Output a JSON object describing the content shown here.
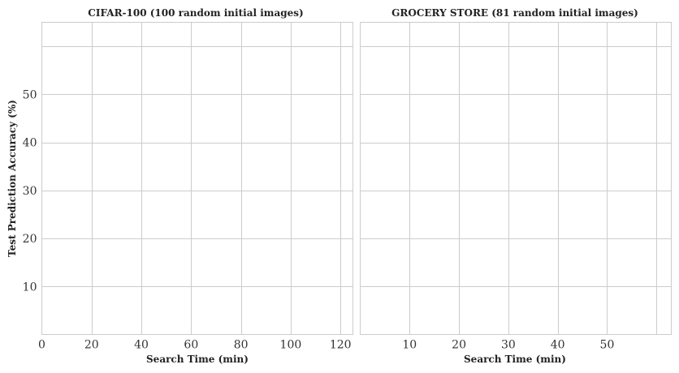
{
  "chart_data": [
    {
      "type": "line",
      "title": "CIFAR-100 (100 random initial images)",
      "xlabel": "Search Time (min)",
      "ylabel": "Test Prediction Accuracy (%)",
      "xlim": [
        0,
        125
      ],
      "ylim": [
        0,
        65
      ],
      "xticks": [
        0,
        20,
        40,
        60,
        80,
        100,
        120
      ],
      "yticks": [
        10,
        20,
        30,
        40,
        50
      ],
      "extra_ygrid": [
        60
      ],
      "grid": true,
      "series": []
    },
    {
      "type": "line",
      "title": "GROCERY STORE (81 random initial images)",
      "xlabel": "Search Time (min)",
      "ylabel": "",
      "xlim": [
        0,
        63
      ],
      "ylim": [
        0,
        65
      ],
      "xticks": [
        10,
        20,
        30,
        40,
        50
      ],
      "extra_xgrid": [
        60
      ],
      "yticks": [
        10,
        20,
        30,
        40,
        50
      ],
      "extra_ygrid": [
        60
      ],
      "grid": true,
      "series": []
    }
  ]
}
